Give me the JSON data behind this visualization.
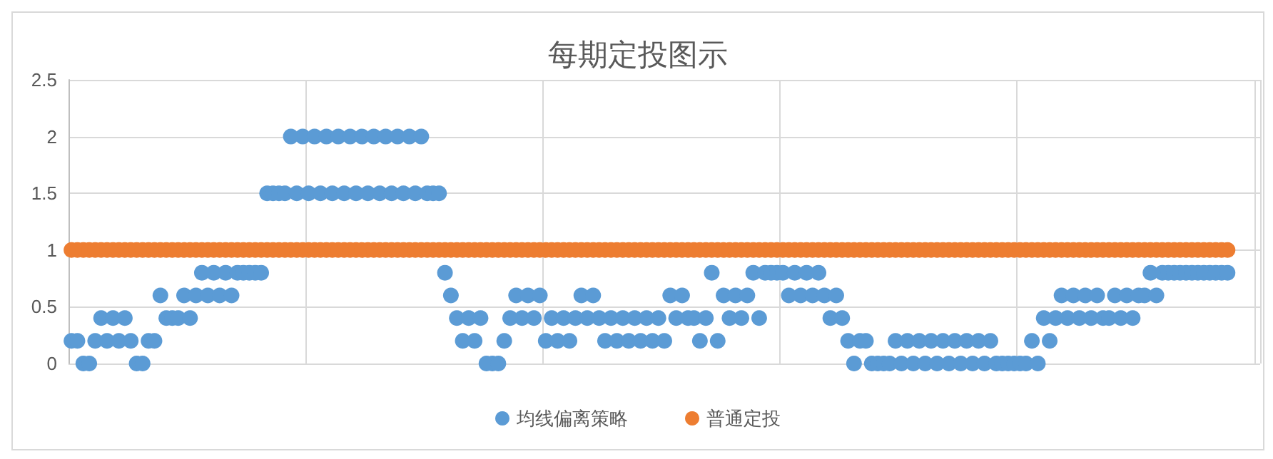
{
  "chart_data": {
    "type": "scatter",
    "title": "每期定投图示",
    "categories": [
      null,
      null,
      null,
      null,
      null,
      null,
      null,
      null,
      null,
      null,
      null,
      null,
      null,
      null,
      null,
      null,
      null,
      null,
      null,
      null,
      null,
      null,
      null,
      null,
      null,
      null,
      null,
      null,
      null,
      null,
      null,
      null,
      null,
      null,
      null,
      null,
      null,
      null,
      null,
      null,
      null,
      null,
      null,
      null,
      null,
      null,
      null,
      null,
      null,
      null,
      null,
      null,
      null,
      null,
      null,
      null,
      null,
      null,
      null,
      null,
      null,
      null,
      null,
      null,
      null,
      null,
      null,
      null,
      null,
      null,
      null,
      null,
      null,
      null,
      null,
      null,
      null,
      null,
      null,
      null,
      null,
      null,
      null,
      null,
      null,
      null,
      null,
      null,
      null,
      null,
      null,
      null,
      null,
      null,
      null,
      null,
      null,
      null,
      null,
      null,
      null,
      null,
      null,
      null,
      null,
      null,
      null,
      null,
      null,
      null,
      null,
      null,
      null,
      null,
      null,
      null,
      null,
      null,
      null,
      null,
      null,
      null,
      null,
      null,
      null,
      null,
      null,
      null,
      null,
      null,
      null,
      null,
      null,
      null,
      null,
      null,
      null,
      null,
      null,
      null,
      null,
      null,
      null,
      null,
      null,
      null,
      null,
      null,
      null,
      null,
      null,
      null,
      null,
      null,
      null,
      null,
      null,
      null,
      null,
      null,
      null,
      null,
      null,
      null,
      null,
      null,
      null,
      null,
      null,
      null,
      null,
      null,
      null,
      null,
      null,
      null,
      null,
      null,
      null,
      null,
      null,
      null,
      null,
      null,
      null,
      null,
      null,
      null,
      null,
      null,
      null,
      null,
      null,
      null,
      null,
      null,
      null,
      null,
      null,
      null,
      null
    ],
    "ylim": [
      0,
      2.5
    ],
    "yticks": [
      0,
      0.5,
      1,
      1.5,
      2,
      2.5
    ],
    "tick_labels": "y",
    "grid": true,
    "legend": "bottom",
    "marker": "circle",
    "series": [
      {
        "name": "均线偏离策略",
        "color": "#5b9bd5",
        "values": [
          0.2,
          0.2,
          0,
          0,
          0.2,
          0.4,
          0.2,
          0.4,
          0.2,
          0.4,
          0.2,
          0,
          0,
          0.2,
          0.2,
          0.6,
          0.4,
          0.4,
          0.4,
          0.6,
          0.4,
          0.6,
          0.8,
          0.6,
          0.8,
          0.6,
          0.8,
          0.6,
          0.8,
          0.8,
          0.8,
          0.8,
          0.8,
          1.5,
          1.5,
          1.5,
          1.5,
          2,
          1.5,
          2,
          1.5,
          2,
          1.5,
          2,
          1.5,
          2,
          1.5,
          2,
          1.5,
          2,
          1.5,
          2,
          1.5,
          2,
          1.5,
          2,
          1.5,
          2,
          1.5,
          2,
          1.5,
          1.5,
          1.5,
          0.8,
          0.6,
          0.4,
          0.2,
          0.4,
          0.2,
          0.4,
          0,
          0,
          0,
          0.2,
          0.4,
          0.6,
          0.4,
          0.6,
          0.4,
          0.6,
          0.2,
          0.4,
          0.2,
          0.4,
          0.2,
          0.4,
          0.6,
          0.4,
          0.6,
          0.4,
          0.2,
          0.4,
          0.2,
          0.4,
          0.2,
          0.4,
          0.2,
          0.4,
          0.2,
          0.4,
          0.2,
          0.6,
          0.4,
          0.6,
          0.4,
          0.4,
          0.2,
          0.4,
          0.8,
          0.2,
          0.6,
          0.4,
          0.6,
          0.4,
          0.6,
          0.8,
          0.4,
          0.8,
          0.8,
          0.8,
          0.8,
          0.6,
          0.8,
          0.6,
          0.8,
          0.6,
          0.8,
          0.6,
          0.4,
          0.6,
          0.4,
          0.2,
          0,
          0.2,
          0.2,
          0,
          0,
          0,
          0,
          0.2,
          0,
          0.2,
          0,
          0.2,
          0,
          0.2,
          0,
          0.2,
          0,
          0.2,
          0,
          0.2,
          0,
          0.2,
          0,
          0.2,
          0,
          0,
          0,
          0,
          0,
          0,
          0.2,
          0,
          0.4,
          0.2,
          0.4,
          0.6,
          0.4,
          0.6,
          0.4,
          0.6,
          0.4,
          0.6,
          0.4,
          0.4,
          0.6,
          0.4,
          0.6,
          0.4,
          0.6,
          0.6,
          0.8,
          0.6,
          0.8,
          0.8,
          0.8,
          0.8,
          0.8,
          0.8,
          0.8,
          0.8,
          0.8,
          0.8,
          0.8,
          0.8,
          null,
          null,
          null,
          null,
          null
        ]
      },
      {
        "name": "普通定投",
        "color": "#ed7d31",
        "values": [
          1,
          1,
          1,
          1,
          1,
          1,
          1,
          1,
          1,
          1,
          1,
          1,
          1,
          1,
          1,
          1,
          1,
          1,
          1,
          1,
          1,
          1,
          1,
          1,
          1,
          1,
          1,
          1,
          1,
          1,
          1,
          1,
          1,
          1,
          1,
          1,
          1,
          1,
          1,
          1,
          1,
          1,
          1,
          1,
          1,
          1,
          1,
          1,
          1,
          1,
          1,
          1,
          1,
          1,
          1,
          1,
          1,
          1,
          1,
          1,
          1,
          1,
          1,
          1,
          1,
          1,
          1,
          1,
          1,
          1,
          1,
          1,
          1,
          1,
          1,
          1,
          1,
          1,
          1,
          1,
          1,
          1,
          1,
          1,
          1,
          1,
          1,
          1,
          1,
          1,
          1,
          1,
          1,
          1,
          1,
          1,
          1,
          1,
          1,
          1,
          1,
          1,
          1,
          1,
          1,
          1,
          1,
          1,
          1,
          1,
          1,
          1,
          1,
          1,
          1,
          1,
          1,
          1,
          1,
          1,
          1,
          1,
          1,
          1,
          1,
          1,
          1,
          1,
          1,
          1,
          1,
          1,
          1,
          1,
          1,
          1,
          1,
          1,
          1,
          1,
          1,
          1,
          1,
          1,
          1,
          1,
          1,
          1,
          1,
          1,
          1,
          1,
          1,
          1,
          1,
          1,
          1,
          1,
          1,
          1,
          1,
          1,
          1,
          1,
          1,
          1,
          1,
          1,
          1,
          1,
          1,
          1,
          1,
          1,
          1,
          1,
          1,
          1,
          1,
          1,
          1,
          1,
          1,
          1,
          1,
          1,
          1,
          1,
          1,
          1,
          1,
          1,
          1,
          1,
          1,
          1,
          null,
          null,
          null,
          null,
          null
        ]
      }
    ]
  }
}
